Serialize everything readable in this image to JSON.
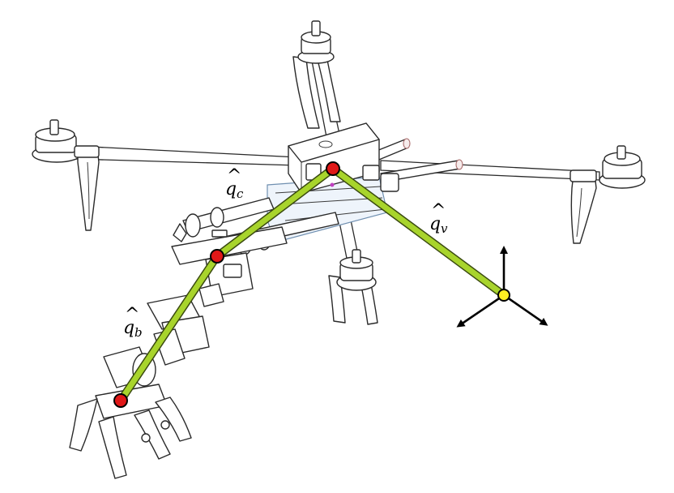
{
  "labels": {
    "q_c": {
      "base": "q",
      "hat": "^",
      "subscript": "c"
    },
    "q_v": {
      "base": "q",
      "hat": "^",
      "subscript": "v"
    },
    "q_b": {
      "base": "q",
      "hat": "^",
      "subscript": "b"
    }
  },
  "colors": {
    "link": "#a8d42c",
    "link_outline": "#3a4a10",
    "joint": "#e01818",
    "reference_point": "#ffee22",
    "axes": "#000000",
    "drawing_lines": "#2a2a2a"
  },
  "icons": {
    "frame": "quadrotor-frame-icon",
    "manipulator": "robotic-arm-icon",
    "gripper": "gripper-claw-icon",
    "axes": "coordinate-axes-icon"
  }
}
